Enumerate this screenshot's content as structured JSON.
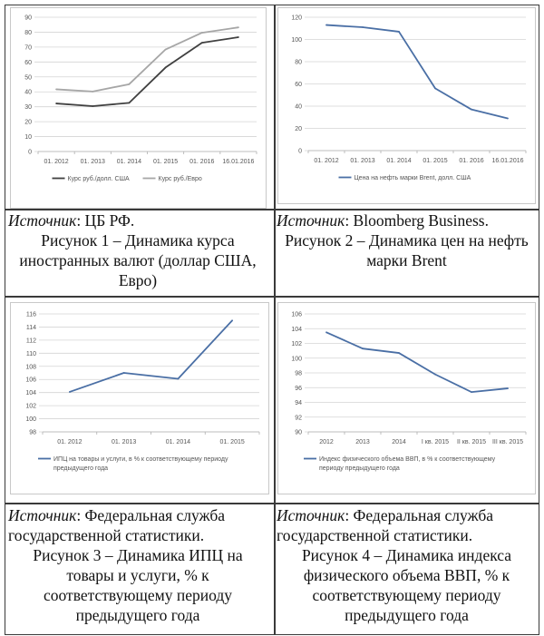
{
  "chart_data": [
    {
      "type": "line",
      "categories": [
        "01. 2012",
        "01. 2013",
        "01. 2014",
        "01. 2015",
        "01. 2016",
        "16.01.2016"
      ],
      "series": [
        {
          "name": "Курс руб./долл. США",
          "values": [
            32.2,
            30.4,
            32.6,
            56.3,
            72.9,
            76.6
          ],
          "color": "#404040"
        },
        {
          "name": "Курс руб./Евро",
          "values": [
            41.7,
            40.2,
            45.1,
            68.4,
            79.6,
            83.2
          ],
          "color": "#a6a6a6"
        }
      ],
      "ylim": [
        0,
        90
      ],
      "yticks": [
        0,
        10,
        20,
        30,
        40,
        50,
        60,
        70,
        80,
        90
      ],
      "grid": true,
      "legend": "bottom",
      "title": "",
      "xlabel": "",
      "ylabel": ""
    },
    {
      "type": "line",
      "categories": [
        "01. 2012",
        "01. 2013",
        "01. 2014",
        "01. 2015",
        "01. 2016",
        "16.01.2016"
      ],
      "series": [
        {
          "name": "Цена на нефть марки Brent, долл. США",
          "values": [
            113,
            111,
            107,
            56,
            37,
            29
          ],
          "color": "#4a6fa5"
        }
      ],
      "ylim": [
        0,
        120
      ],
      "yticks": [
        0,
        20,
        40,
        60,
        80,
        100,
        120
      ],
      "grid": true,
      "legend": "bottom",
      "title": "",
      "xlabel": "",
      "ylabel": ""
    },
    {
      "type": "line",
      "categories": [
        "01. 2012",
        "01. 2013",
        "01. 2014",
        "01. 2015"
      ],
      "series": [
        {
          "name": "ИПЦ на товары и услуги, в % к соответствующему периоду предыдущего года",
          "values": [
            104.1,
            107.0,
            106.1,
            115.0
          ],
          "color": "#4a6fa5"
        }
      ],
      "ylim": [
        98,
        116
      ],
      "yticks": [
        98,
        100,
        102,
        104,
        106,
        108,
        110,
        112,
        114,
        116
      ],
      "grid": true,
      "legend": "bottom",
      "title": "",
      "xlabel": "",
      "ylabel": ""
    },
    {
      "type": "line",
      "categories": [
        "2012",
        "2013",
        "2014",
        "I кв. 2015",
        "II кв. 2015",
        "III кв. 2015"
      ],
      "series": [
        {
          "name": "Индекс физического объема ВВП, в % к соответствующему периоду предыдущего года",
          "values": [
            103.5,
            101.3,
            100.7,
            97.8,
            95.4,
            95.9
          ],
          "color": "#4a6fa5"
        }
      ],
      "ylim": [
        90,
        106
      ],
      "yticks": [
        90,
        92,
        94,
        96,
        98,
        100,
        102,
        104,
        106
      ],
      "grid": true,
      "legend": "bottom",
      "title": "",
      "xlabel": "",
      "ylabel": ""
    }
  ],
  "captions": [
    {
      "source_label": "Источник",
      "source_text": ": ЦБ РФ.",
      "figure": "Рисунок 1 – Динамика курса иностранных валют (доллар США, Евро)"
    },
    {
      "source_label": "Источник",
      "source_text": ": Bloomberg Business.",
      "figure": "Рисунок 2 – Динамика цен на нефть марки Brent"
    },
    {
      "source_label": "Источник",
      "source_text": ": Федеральная служба государственной статистики.",
      "figure": "Рисунок 3 – Динамика ИПЦ на товары и услуги, % к соответствующему периоду предыдущего года"
    },
    {
      "source_label": "Источник",
      "source_text": ": Федеральная служба государственной статистики.",
      "figure": "Рисунок 4 – Динамика индекса физического объема ВВП, % к соответствующему периоду предыдущего года"
    }
  ]
}
